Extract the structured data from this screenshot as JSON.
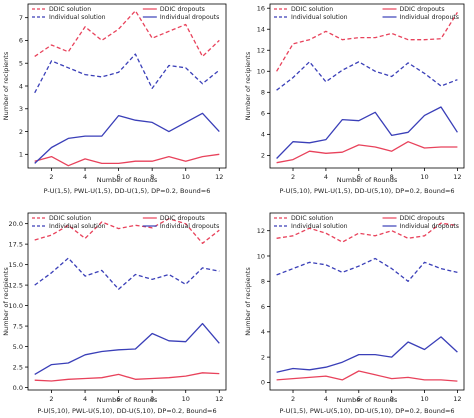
{
  "chart_data": [
    {
      "type": "line",
      "xlabel": "Number of Rounds",
      "ylabel": "Number of recipients",
      "caption": "P-U(1,5), PWL-U(1,5), DD-U(1,5), DP=0.2, Bound=6",
      "x": [
        1,
        2,
        3,
        4,
        5,
        6,
        7,
        8,
        9,
        10,
        11,
        12
      ],
      "xlim": [
        0.6,
        12.4
      ],
      "ylim": [
        0.4,
        7.6
      ],
      "xticks": [
        2,
        4,
        6,
        8,
        10,
        12
      ],
      "yticks": [
        1,
        2,
        3,
        4,
        5,
        6,
        7
      ],
      "legend": {
        "left": [
          "DDIC solution",
          "Individual solution"
        ],
        "right": [
          "DDIC dropouts",
          "Individual dropouts"
        ]
      },
      "series": [
        {
          "name": "DDIC solution",
          "color": "#e8425b",
          "dash": "dashed",
          "values": [
            5.3,
            5.8,
            5.5,
            6.6,
            6.0,
            6.5,
            7.3,
            6.1,
            6.4,
            6.7,
            5.3,
            6.0
          ]
        },
        {
          "name": "Individual solution",
          "color": "#3a3fb8",
          "dash": "dashed",
          "values": [
            3.7,
            5.1,
            4.8,
            4.5,
            4.4,
            4.6,
            5.4,
            3.9,
            4.9,
            4.8,
            4.1,
            4.7
          ]
        },
        {
          "name": "DDIC dropouts",
          "color": "#e8425b",
          "dash": "solid",
          "values": [
            0.7,
            0.9,
            0.5,
            0.8,
            0.6,
            0.6,
            0.7,
            0.7,
            0.9,
            0.7,
            0.9,
            1.0
          ]
        },
        {
          "name": "Individual dropouts",
          "color": "#3a3fb8",
          "dash": "solid",
          "values": [
            0.6,
            1.3,
            1.7,
            1.8,
            1.8,
            2.7,
            2.5,
            2.4,
            2.0,
            2.4,
            2.8,
            2.0
          ]
        }
      ]
    },
    {
      "type": "line",
      "xlabel": "Number of Rounds",
      "ylabel": "Number of recipients",
      "caption": "P-U(5,10), PWL-U(1,5), DD-U(5,10), DP=0.2, Bound=6",
      "x": [
        1,
        2,
        3,
        4,
        5,
        6,
        7,
        8,
        9,
        10,
        11,
        12
      ],
      "xlim": [
        0.6,
        12.4
      ],
      "ylim": [
        0.8,
        16.4
      ],
      "xticks": [
        2,
        4,
        6,
        8,
        10,
        12
      ],
      "yticks": [
        2,
        4,
        6,
        8,
        10,
        12,
        14,
        16
      ],
      "legend": {
        "left": [
          "DDIC solution",
          "Individual solution"
        ],
        "right": [
          "DDIC dropouts",
          "Individual dropouts"
        ]
      },
      "series": [
        {
          "name": "DDIC solution",
          "color": "#e8425b",
          "dash": "dashed",
          "values": [
            10.0,
            12.6,
            13.0,
            13.8,
            13.0,
            13.2,
            13.2,
            13.6,
            13.0,
            13.0,
            13.1,
            15.6
          ]
        },
        {
          "name": "Individual solution",
          "color": "#3a3fb8",
          "dash": "dashed",
          "values": [
            8.2,
            9.4,
            10.9,
            9.0,
            10.1,
            10.9,
            10.0,
            9.5,
            10.8,
            9.8,
            8.6,
            9.2
          ]
        },
        {
          "name": "DDIC dropouts",
          "color": "#e8425b",
          "dash": "solid",
          "values": [
            1.3,
            1.6,
            2.4,
            2.2,
            2.3,
            3.0,
            2.8,
            2.4,
            3.3,
            2.7,
            2.8,
            2.8
          ]
        },
        {
          "name": "Individual dropouts",
          "color": "#3a3fb8",
          "dash": "solid",
          "values": [
            1.7,
            3.3,
            3.2,
            3.5,
            5.4,
            5.3,
            6.1,
            3.9,
            4.2,
            5.8,
            6.6,
            4.2
          ]
        }
      ]
    },
    {
      "type": "line",
      "xlabel": "Number of Rounds",
      "ylabel": "Number of recipients",
      "caption": "P-U(5,10), PWL-U(5,10), DD-U(5,10), DP=0.2, Bound=6",
      "x": [
        1,
        2,
        3,
        4,
        5,
        6,
        7,
        8,
        9,
        10,
        11,
        12
      ],
      "xlim": [
        0.6,
        12.4
      ],
      "ylim": [
        -0.3,
        21.3
      ],
      "xticks": [
        2,
        4,
        6,
        8,
        10,
        12
      ],
      "yticks": [
        0.0,
        2.5,
        5.0,
        7.5,
        10.0,
        12.5,
        15.0,
        17.5,
        20.0
      ],
      "legend": {
        "left": [
          "DDIC solution",
          "Individual solution"
        ],
        "right": [
          "DDIC dropouts",
          "Individual dropouts"
        ]
      },
      "series": [
        {
          "name": "DDIC solution",
          "color": "#e8425b",
          "dash": "dashed",
          "values": [
            18.0,
            18.6,
            19.8,
            18.2,
            20.2,
            19.4,
            19.8,
            19.5,
            20.6,
            20.0,
            17.6,
            19.2
          ]
        },
        {
          "name": "Individual solution",
          "color": "#3a3fb8",
          "dash": "dashed",
          "values": [
            12.5,
            14.0,
            15.8,
            13.6,
            14.3,
            12.0,
            13.8,
            13.2,
            13.8,
            12.6,
            14.6,
            14.2
          ]
        },
        {
          "name": "DDIC dropouts",
          "color": "#e8425b",
          "dash": "solid",
          "values": [
            0.9,
            0.8,
            1.0,
            1.1,
            1.2,
            1.6,
            1.0,
            1.1,
            1.2,
            1.4,
            1.8,
            1.7
          ]
        },
        {
          "name": "Individual dropouts",
          "color": "#3a3fb8",
          "dash": "solid",
          "values": [
            1.6,
            2.8,
            3.0,
            4.0,
            4.4,
            4.6,
            4.7,
            6.6,
            5.7,
            5.6,
            7.8,
            5.4
          ]
        }
      ]
    },
    {
      "type": "line",
      "xlabel": "Number of Rounds",
      "ylabel": "Number of recipients",
      "caption": "P-U(1,5), PWL-U(5,10), DD-U(5,10), DP=0.2, Bound=6",
      "x": [
        1,
        2,
        3,
        4,
        5,
        6,
        7,
        8,
        9,
        10,
        11,
        12
      ],
      "xlim": [
        0.6,
        12.4
      ],
      "ylim": [
        -0.6,
        13.4
      ],
      "xticks": [
        2,
        4,
        6,
        8,
        10,
        12
      ],
      "yticks": [
        0,
        2,
        4,
        6,
        8,
        10,
        12
      ],
      "legend": {
        "left": [
          "DDIC solution",
          "Individual solution"
        ],
        "right": [
          "DDIC dropouts",
          "Individual dropouts"
        ]
      },
      "series": [
        {
          "name": "DDIC solution",
          "color": "#e8425b",
          "dash": "dashed",
          "values": [
            11.4,
            11.6,
            12.2,
            11.8,
            11.1,
            11.8,
            11.6,
            12.0,
            11.4,
            11.6,
            12.6,
            12.4
          ]
        },
        {
          "name": "Individual solution",
          "color": "#3a3fb8",
          "dash": "dashed",
          "values": [
            8.5,
            9.0,
            9.5,
            9.3,
            8.7,
            9.2,
            9.8,
            9.0,
            8.0,
            9.5,
            9.0,
            8.7
          ]
        },
        {
          "name": "DDIC dropouts",
          "color": "#e8425b",
          "dash": "solid",
          "values": [
            0.2,
            0.3,
            0.4,
            0.5,
            0.2,
            0.9,
            0.6,
            0.3,
            0.4,
            0.2,
            0.2,
            0.1
          ]
        },
        {
          "name": "Individual dropouts",
          "color": "#3a3fb8",
          "dash": "solid",
          "values": [
            0.8,
            1.1,
            1.0,
            1.2,
            1.6,
            2.2,
            2.2,
            2.0,
            3.2,
            2.6,
            3.6,
            2.4
          ]
        }
      ]
    }
  ]
}
